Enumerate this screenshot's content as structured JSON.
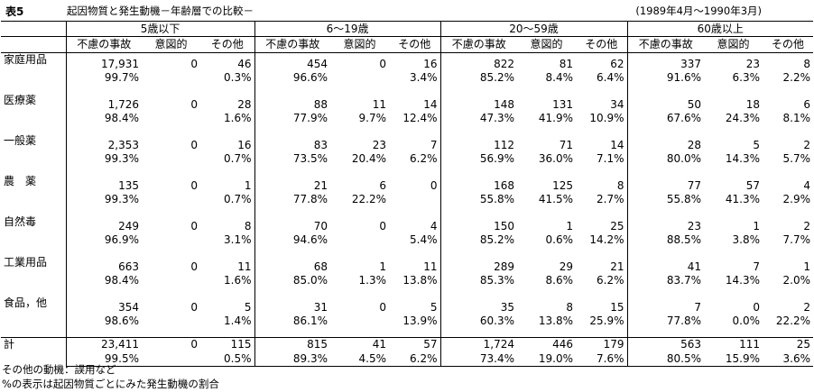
{
  "title": {
    "label": "表5",
    "text": "起因物質と発生動機－年齢層での比較－",
    "period": "(1989年4月～1990年3月)"
  },
  "age_groups": [
    "5歳以下",
    "6～19歳",
    "20～59歳",
    "60歳以上"
  ],
  "sub_headers": [
    "不慮の事故",
    "意図的",
    "その他"
  ],
  "rows": [
    {
      "label": "家庭用品",
      "values": [
        "17,931",
        "0",
        "46",
        "454",
        "0",
        "16",
        "822",
        "81",
        "62",
        "337",
        "23",
        "8"
      ],
      "pcts": [
        "99.7%",
        "",
        "0.3%",
        "96.6%",
        "",
        "3.4%",
        "85.2%",
        "8.4%",
        "6.4%",
        "91.6%",
        "6.3%",
        "2.2%"
      ]
    },
    {
      "label": "医療薬",
      "values": [
        "1,726",
        "0",
        "28",
        "88",
        "11",
        "14",
        "148",
        "131",
        "34",
        "50",
        "18",
        "6"
      ],
      "pcts": [
        "98.4%",
        "",
        "1.6%",
        "77.9%",
        "9.7%",
        "12.4%",
        "47.3%",
        "41.9%",
        "10.9%",
        "67.6%",
        "24.3%",
        "8.1%"
      ]
    },
    {
      "label": "一般薬",
      "values": [
        "2,353",
        "0",
        "16",
        "83",
        "23",
        "7",
        "112",
        "71",
        "14",
        "28",
        "5",
        "2"
      ],
      "pcts": [
        "99.3%",
        "",
        "0.7%",
        "73.5%",
        "20.4%",
        "6.2%",
        "56.9%",
        "36.0%",
        "7.1%",
        "80.0%",
        "14.3%",
        "5.7%"
      ]
    },
    {
      "label": "農　薬",
      "values": [
        "135",
        "0",
        "1",
        "21",
        "6",
        "0",
        "168",
        "125",
        "8",
        "77",
        "57",
        "4"
      ],
      "pcts": [
        "99.3%",
        "",
        "0.7%",
        "77.8%",
        "22.2%",
        "",
        "55.8%",
        "41.5%",
        "2.7%",
        "55.8%",
        "41.3%",
        "2.9%"
      ]
    },
    {
      "label": "自然毒",
      "values": [
        "249",
        "0",
        "8",
        "70",
        "0",
        "4",
        "150",
        "1",
        "25",
        "23",
        "1",
        "2"
      ],
      "pcts": [
        "96.9%",
        "",
        "3.1%",
        "94.6%",
        "",
        "5.4%",
        "85.2%",
        "0.6%",
        "14.2%",
        "88.5%",
        "3.8%",
        "7.7%"
      ]
    },
    {
      "label": "工業用品",
      "values": [
        "663",
        "0",
        "11",
        "68",
        "1",
        "11",
        "289",
        "29",
        "21",
        "41",
        "7",
        "1"
      ],
      "pcts": [
        "98.4%",
        "",
        "1.6%",
        "85.0%",
        "1.3%",
        "13.8%",
        "85.3%",
        "8.6%",
        "6.2%",
        "83.7%",
        "14.3%",
        "2.0%"
      ]
    },
    {
      "label": "食品，他",
      "values": [
        "354",
        "0",
        "5",
        "31",
        "0",
        "5",
        "35",
        "8",
        "15",
        "7",
        "0",
        "2"
      ],
      "pcts": [
        "98.6%",
        "",
        "1.4%",
        "86.1%",
        "",
        "13.9%",
        "60.3%",
        "13.8%",
        "25.9%",
        "77.8%",
        "0.0%",
        "22.2%"
      ]
    }
  ],
  "total": {
    "label": "計",
    "values": [
      "23,411",
      "0",
      "115",
      "815",
      "41",
      "57",
      "1,724",
      "446",
      "179",
      "563",
      "111",
      "25"
    ],
    "pcts": [
      "99.5%",
      "",
      "0.5%",
      "89.3%",
      "4.5%",
      "6.2%",
      "73.4%",
      "19.0%",
      "7.6%",
      "80.5%",
      "15.9%",
      "3.6%"
    ]
  },
  "notes": [
    "その他の動機：誤用など",
    "%の表示は起因物質ごとにみた発生動機の割合"
  ]
}
